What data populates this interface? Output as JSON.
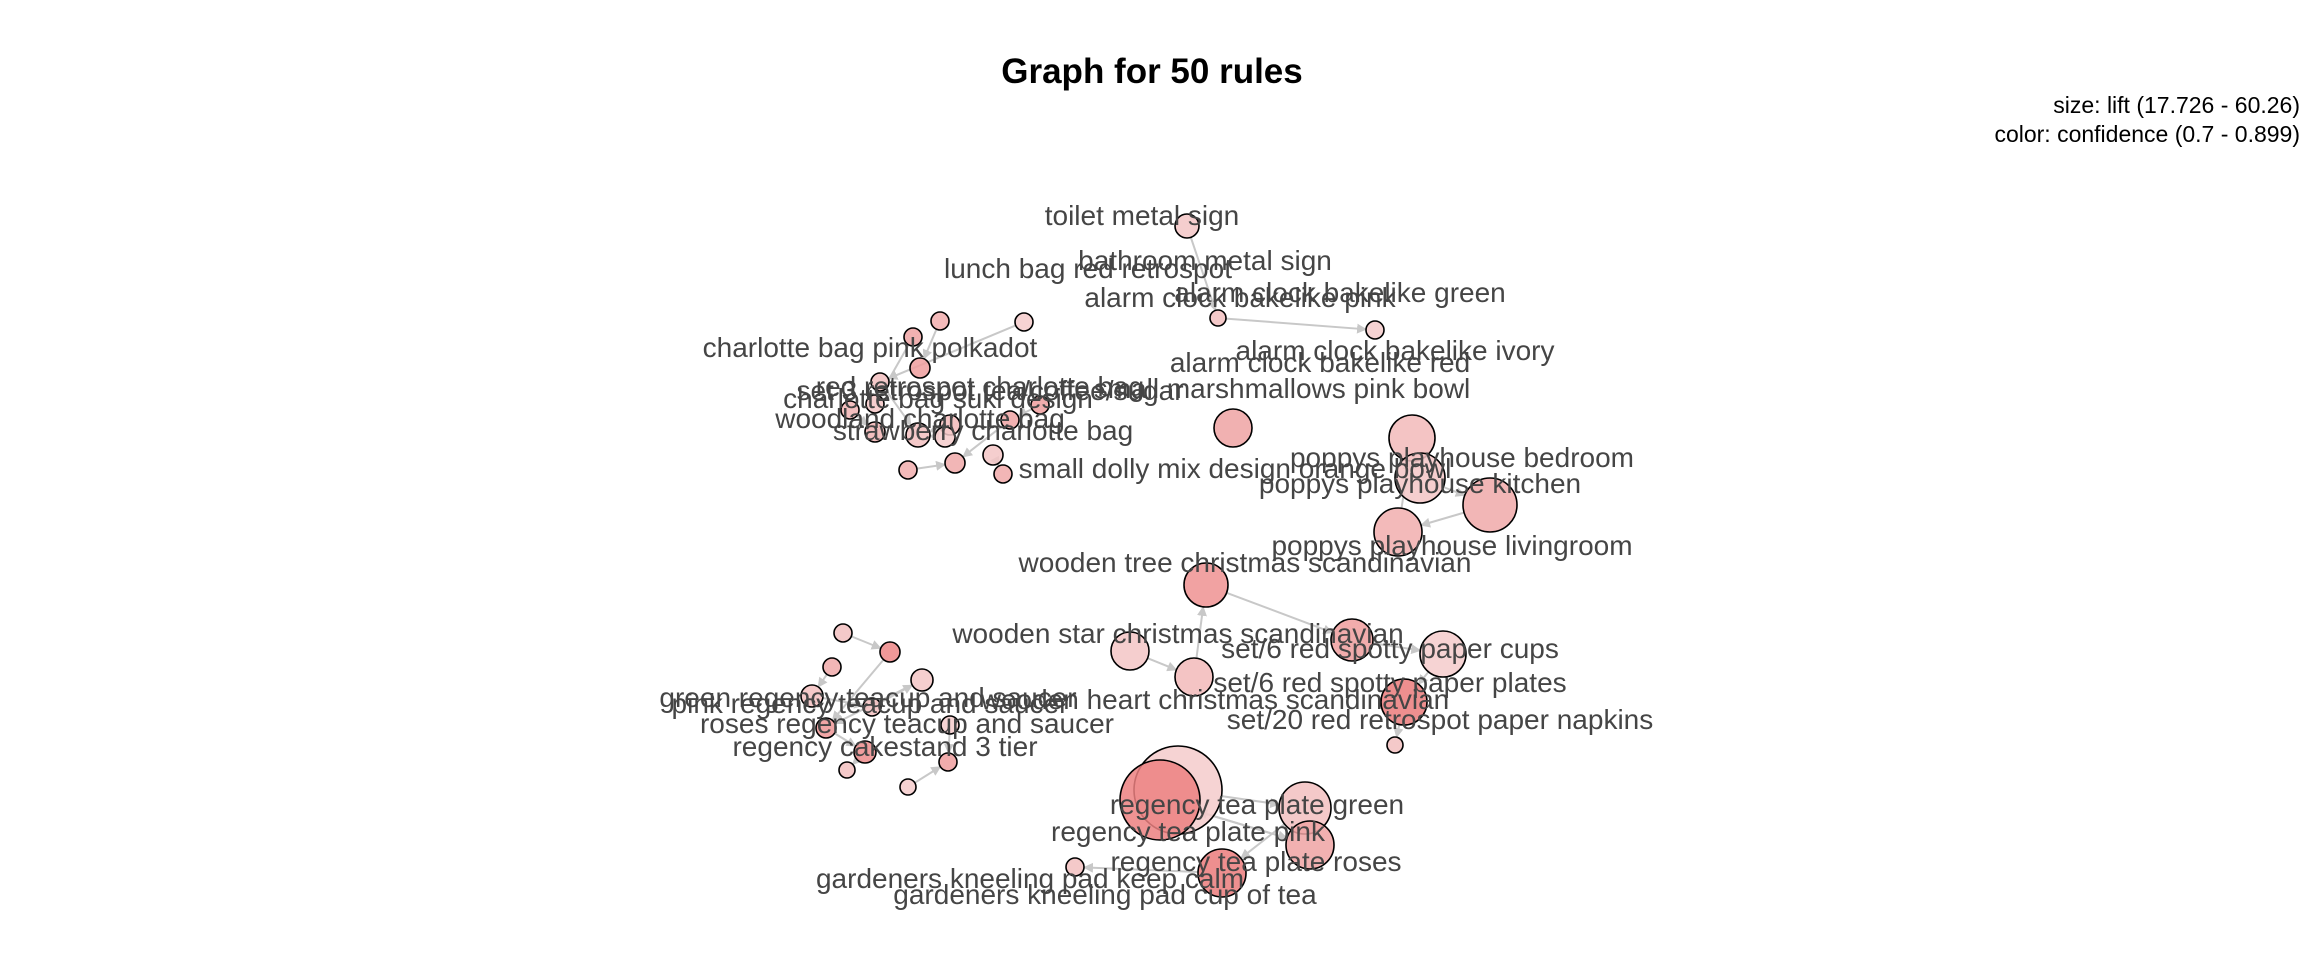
{
  "title": "Graph for 50 rules",
  "legend": {
    "size": "size: lift (17.726 - 60.26)",
    "color": "color: confidence (0.7 - 0.899)"
  },
  "colors": {
    "edge": "#c8c8c8",
    "node_low": "#f6e2e2",
    "node_high": "#ea6f6f",
    "label": "#454545"
  },
  "item_labels": [
    "toilet metal sign",
    "bathroom metal sign",
    "lunch bag red retrospot",
    "alarm clock bakelike green",
    "alarm clock bakelike pink",
    "charlotte bag pink polkadot",
    "alarm clock bakelike ivory",
    "alarm clock bakelike red",
    "red retrospot charlotte bag",
    "charlotte bag suki design",
    "set 3 retrospot tea/coffee/sugar",
    "woodland charlotte bag",
    "strawberry charlotte bag",
    "small dolly mix design orange bowl",
    "small marshmallows pink bowl",
    "poppys playhouse bedroom",
    "poppys playhouse kitchen",
    "poppys playhouse livingroom",
    "wooden tree christmas scandinavian",
    "wooden star christmas scandinavian",
    "wooden heart christmas scandinavian",
    "set/6 red spotty paper cups",
    "set/6 red spotty paper plates",
    "set/20 red retrospot paper napkins",
    "green regency teacup and saucer",
    "pink regency teacup and saucer",
    "roses regency teacup and saucer",
    "regency cakestand 3 tier",
    "regency tea plate green",
    "regency tea plate pink",
    "regency tea plate roses",
    "gardeners kneeling pad keep calm",
    "gardeners kneeling pad cup of tea"
  ]
}
